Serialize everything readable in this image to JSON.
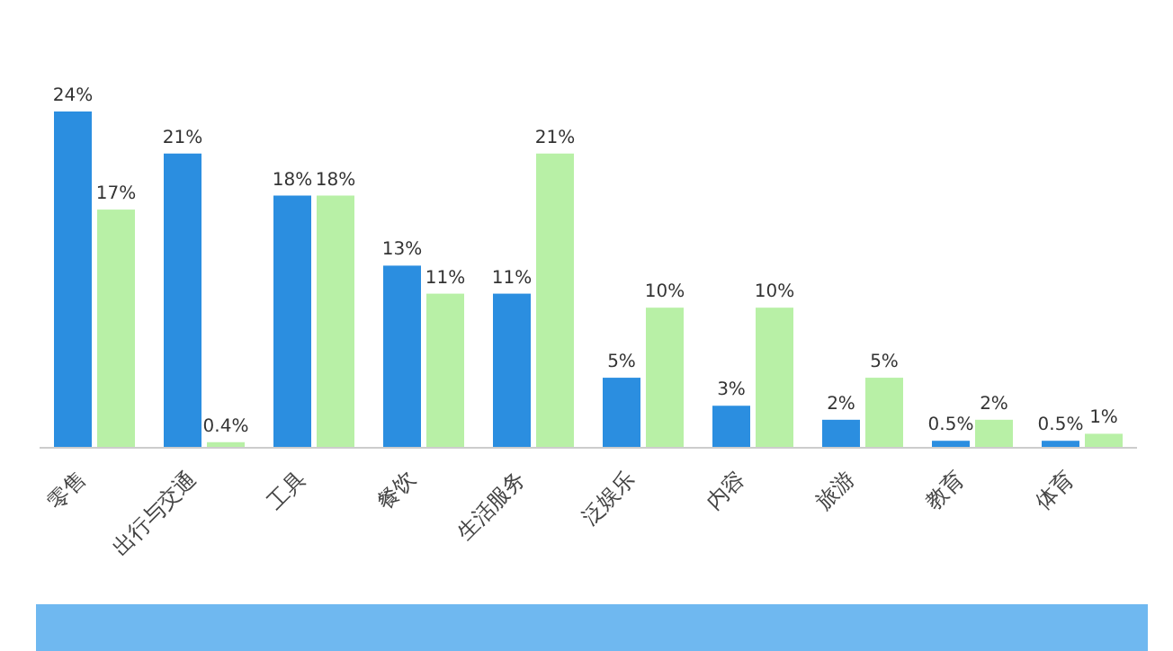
{
  "chart_data": {
    "type": "bar",
    "categories": [
      "零售",
      "出行与交通",
      "工具",
      "餐饮",
      "生活服务",
      "泛娱乐",
      "内容",
      "旅游",
      "教育",
      "体育"
    ],
    "series": [
      {
        "color": "#2b8ee0",
        "values": [
          24,
          21,
          18,
          13,
          11,
          5,
          3,
          2,
          0.5,
          0.5
        ],
        "value_labels": [
          "24%",
          "21%",
          "18%",
          "13%",
          "11%",
          "5%",
          "3%",
          "2%",
          "0.5%",
          "0.5%"
        ]
      },
      {
        "color": "#b8f0a6",
        "values": [
          17,
          0.4,
          18,
          11,
          21,
          10,
          10,
          5,
          2,
          1
        ],
        "value_labels": [
          "17%",
          "0.4%",
          "18%",
          "11%",
          "21%",
          "10%",
          "10%",
          "5%",
          "2%",
          "1%"
        ]
      }
    ]
  }
}
